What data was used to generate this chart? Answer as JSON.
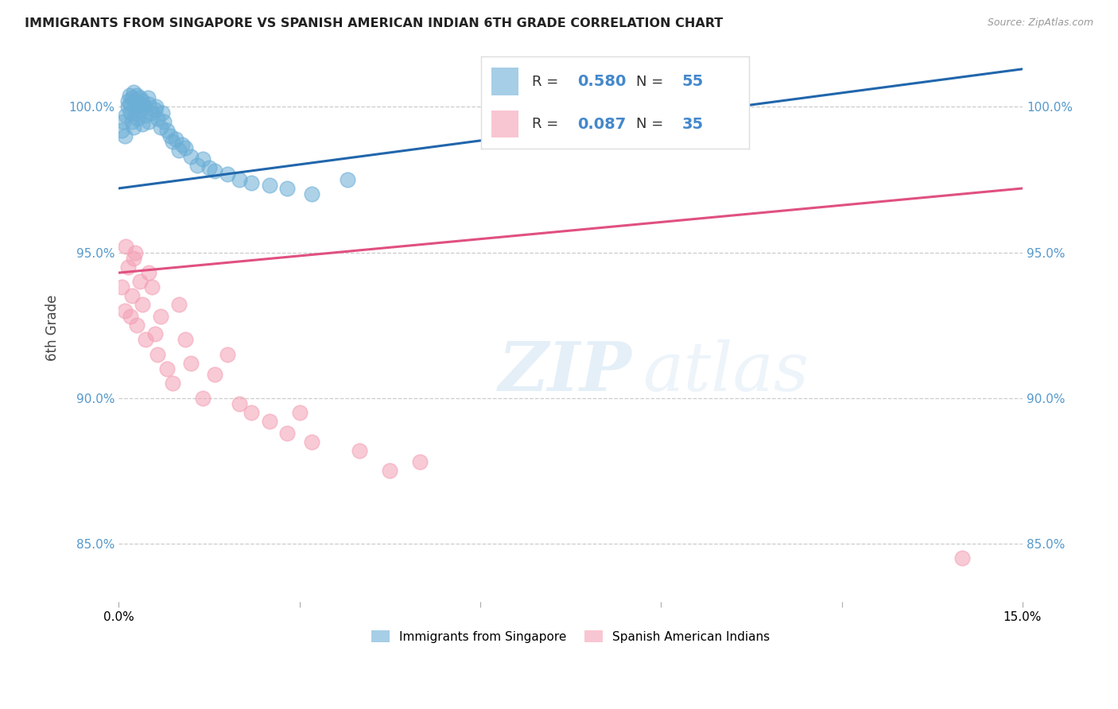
{
  "title": "IMMIGRANTS FROM SINGAPORE VS SPANISH AMERICAN INDIAN 6TH GRADE CORRELATION CHART",
  "source": "Source: ZipAtlas.com",
  "ylabel": "6th Grade",
  "xlim": [
    0.0,
    15.0
  ],
  "ylim": [
    83.0,
    101.8
  ],
  "yticks": [
    85.0,
    90.0,
    95.0,
    100.0
  ],
  "ytick_labels": [
    "85.0%",
    "90.0%",
    "95.0%",
    "100.0%"
  ],
  "blue_R": 0.58,
  "blue_N": 55,
  "pink_R": 0.087,
  "pink_N": 35,
  "blue_color": "#6baed6",
  "pink_color": "#f4a0b5",
  "blue_line_color": "#2166ac",
  "pink_line_color": "#e05080",
  "legend_label_blue": "Immigrants from Singapore",
  "legend_label_pink": "Spanish American Indians",
  "watermark_zip": "ZIP",
  "watermark_atlas": "atlas",
  "blue_scatter_x": [
    0.05,
    0.08,
    0.1,
    0.12,
    0.15,
    0.15,
    0.18,
    0.2,
    0.2,
    0.22,
    0.22,
    0.25,
    0.25,
    0.28,
    0.28,
    0.3,
    0.3,
    0.32,
    0.32,
    0.35,
    0.35,
    0.38,
    0.4,
    0.4,
    0.42,
    0.45,
    0.48,
    0.5,
    0.5,
    0.55,
    0.6,
    0.62,
    0.65,
    0.7,
    0.72,
    0.75,
    0.8,
    0.85,
    0.9,
    0.95,
    1.0,
    1.05,
    1.1,
    1.2,
    1.3,
    1.4,
    1.5,
    1.6,
    1.8,
    2.0,
    2.2,
    2.5,
    2.8,
    3.2,
    3.8
  ],
  "blue_scatter_y": [
    99.2,
    99.5,
    99.0,
    99.7,
    100.0,
    100.2,
    100.4,
    99.8,
    100.1,
    100.3,
    99.5,
    100.5,
    99.3,
    100.2,
    99.8,
    100.0,
    100.4,
    99.6,
    100.1,
    99.9,
    100.3,
    100.1,
    99.4,
    100.2,
    100.0,
    99.7,
    100.3,
    99.5,
    100.1,
    99.8,
    99.9,
    100.0,
    99.6,
    99.3,
    99.8,
    99.5,
    99.2,
    99.0,
    98.8,
    98.9,
    98.5,
    98.7,
    98.6,
    98.3,
    98.0,
    98.2,
    97.9,
    97.8,
    97.7,
    97.5,
    97.4,
    97.3,
    97.2,
    97.0,
    97.5
  ],
  "pink_scatter_x": [
    0.05,
    0.1,
    0.12,
    0.15,
    0.2,
    0.22,
    0.25,
    0.28,
    0.3,
    0.35,
    0.4,
    0.45,
    0.5,
    0.55,
    0.6,
    0.65,
    0.7,
    0.8,
    0.9,
    1.0,
    1.1,
    1.2,
    1.4,
    1.6,
    1.8,
    2.0,
    2.2,
    2.5,
    2.8,
    3.0,
    3.2,
    4.0,
    4.5,
    5.0,
    14.0
  ],
  "pink_scatter_y": [
    93.8,
    93.0,
    95.2,
    94.5,
    92.8,
    93.5,
    94.8,
    95.0,
    92.5,
    94.0,
    93.2,
    92.0,
    94.3,
    93.8,
    92.2,
    91.5,
    92.8,
    91.0,
    90.5,
    93.2,
    92.0,
    91.2,
    90.0,
    90.8,
    91.5,
    89.8,
    89.5,
    89.2,
    88.8,
    89.5,
    88.5,
    88.2,
    87.5,
    87.8,
    84.5
  ],
  "blue_trendline_x": [
    0.0,
    15.0
  ],
  "blue_trendline_y": [
    97.2,
    101.3
  ],
  "pink_trendline_x": [
    0.0,
    15.0
  ],
  "pink_trendline_y": [
    94.3,
    97.2
  ]
}
